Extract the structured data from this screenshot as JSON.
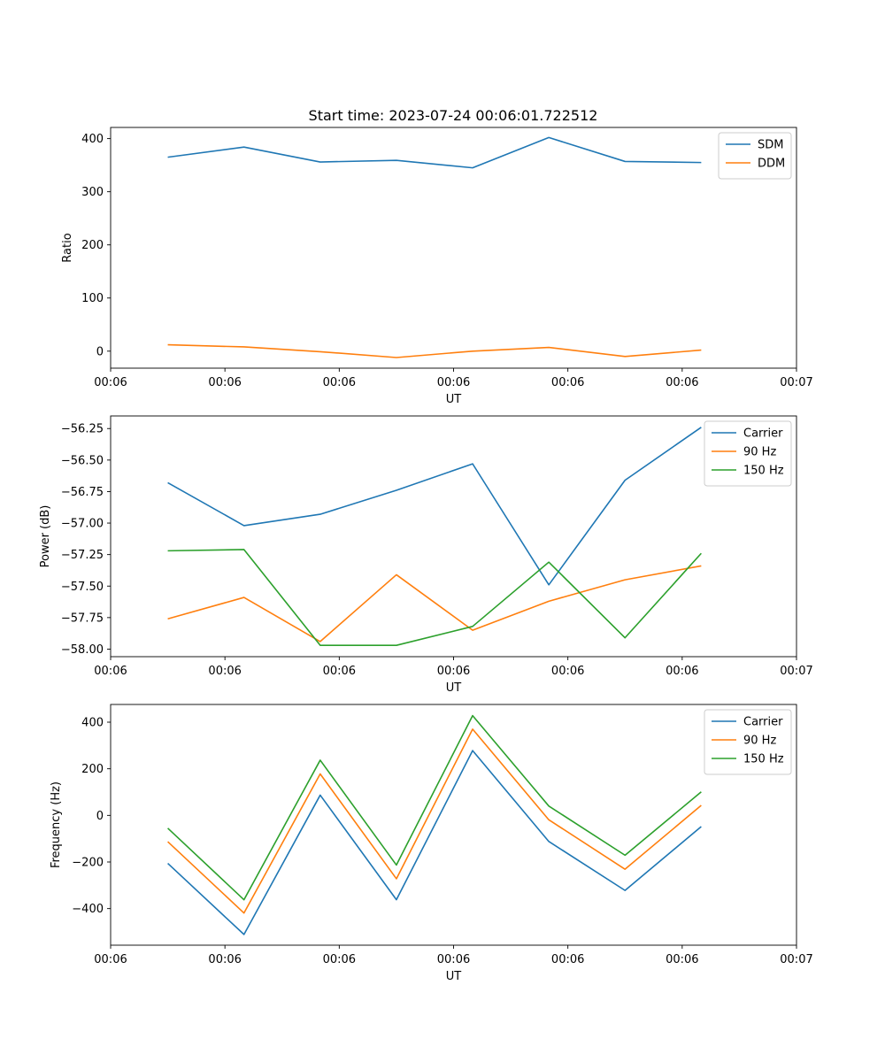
{
  "chart_data": [
    {
      "type": "line",
      "title": "Start time: 2023-07-24 00:06:01.722512",
      "xlabel": "UT",
      "ylabel": "Ratio",
      "x": [
        1,
        2,
        3,
        4,
        5,
        6,
        7,
        8
      ],
      "xlim": [
        0.25,
        9.25
      ],
      "x_ticks": [
        0.25,
        1.75,
        3.25,
        4.75,
        6.25,
        7.75,
        9.25
      ],
      "x_tick_labels": [
        "00:06",
        "00:06",
        "00:06",
        "00:06",
        "00:06",
        "00:06",
        "00:07"
      ],
      "ylim": [
        -32,
        421
      ],
      "y_ticks": [
        0,
        100,
        200,
        300,
        400
      ],
      "y_tick_labels": [
        "0",
        "100",
        "200",
        "300",
        "400"
      ],
      "legend_position": "top-right",
      "series": [
        {
          "name": "SDM",
          "color": "#1f77b4",
          "values": [
            365,
            384,
            356,
            359,
            345,
            402,
            357,
            355
          ]
        },
        {
          "name": "DDM",
          "color": "#ff7f0e",
          "values": [
            12,
            8,
            -1,
            -12,
            0,
            7,
            -10,
            2
          ]
        }
      ]
    },
    {
      "type": "line",
      "title": "",
      "xlabel": "UT",
      "ylabel": "Power (dB)",
      "x": [
        1,
        2,
        3,
        4,
        5,
        6,
        7,
        8
      ],
      "xlim": [
        0.25,
        9.25
      ],
      "x_ticks": [
        0.25,
        1.75,
        3.25,
        4.75,
        6.25,
        7.75,
        9.25
      ],
      "x_tick_labels": [
        "00:06",
        "00:06",
        "00:06",
        "00:06",
        "00:06",
        "00:06",
        "00:07"
      ],
      "ylim": [
        -58.06,
        -56.15
      ],
      "y_ticks": [
        -58.0,
        -57.75,
        -57.5,
        -57.25,
        -57.0,
        -56.75,
        -56.5,
        -56.25
      ],
      "y_tick_labels": [
        "−58.00",
        "−57.75",
        "−57.50",
        "−57.25",
        "−57.00",
        "−56.75",
        "−56.50",
        "−56.25"
      ],
      "legend_position": "top-right",
      "series": [
        {
          "name": "Carrier",
          "color": "#1f77b4",
          "values": [
            -56.68,
            -57.02,
            -56.93,
            -56.74,
            -56.53,
            -57.49,
            -56.66,
            -56.24
          ]
        },
        {
          "name": "90 Hz",
          "color": "#ff7f0e",
          "values": [
            -57.76,
            -57.59,
            -57.94,
            -57.41,
            -57.85,
            -57.62,
            -57.45,
            -57.34
          ]
        },
        {
          "name": "150 Hz",
          "color": "#2ca02c",
          "values": [
            -57.22,
            -57.21,
            -57.97,
            -57.97,
            -57.82,
            -57.31,
            -57.91,
            -57.24
          ]
        }
      ]
    },
    {
      "type": "line",
      "title": "",
      "xlabel": "UT",
      "ylabel": "Frequency (Hz)",
      "x": [
        1,
        2,
        3,
        4,
        5,
        6,
        7,
        8
      ],
      "xlim": [
        0.25,
        9.25
      ],
      "x_ticks": [
        0.25,
        1.75,
        3.25,
        4.75,
        6.25,
        7.75,
        9.25
      ],
      "x_tick_labels": [
        "00:06",
        "00:06",
        "00:06",
        "00:06",
        "00:06",
        "00:06",
        "00:07"
      ],
      "ylim": [
        -557,
        476
      ],
      "y_ticks": [
        -400,
        -200,
        0,
        200,
        400
      ],
      "y_tick_labels": [
        "−400",
        "−200",
        "0",
        "200",
        "400"
      ],
      "legend_position": "top-right",
      "series": [
        {
          "name": "Carrier",
          "color": "#1f77b4",
          "values": [
            -206,
            -511,
            87,
            -362,
            278,
            -112,
            -322,
            -48
          ]
        },
        {
          "name": "90 Hz",
          "color": "#ff7f0e",
          "values": [
            -113,
            -419,
            178,
            -272,
            370,
            -19,
            -231,
            43
          ]
        },
        {
          "name": "150 Hz",
          "color": "#2ca02c",
          "values": [
            -55,
            -362,
            237,
            -213,
            428,
            40,
            -171,
            101
          ]
        }
      ]
    }
  ]
}
